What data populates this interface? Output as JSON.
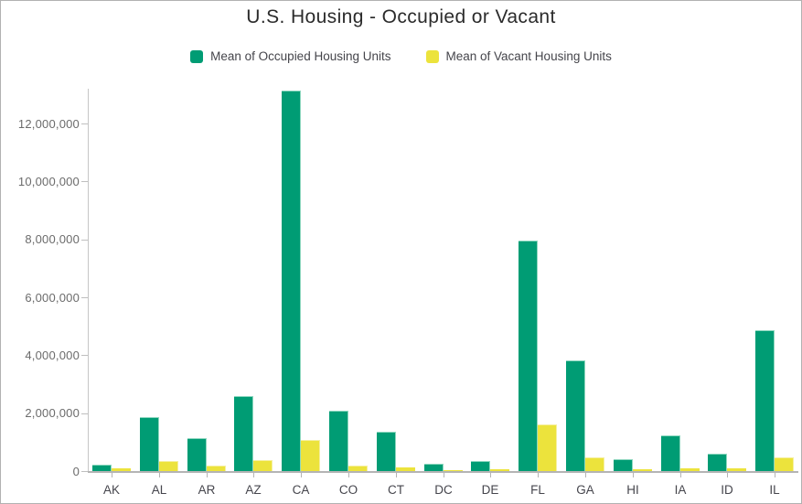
{
  "title": "U.S. Housing - Occupied or Vacant",
  "legend": {
    "items": [
      {
        "label": "Mean of Occupied Housing Units",
        "color": "#009c74"
      },
      {
        "label": "Mean of Vacant Housing Units",
        "color": "#ece33c"
      }
    ]
  },
  "chart_data": {
    "type": "bar",
    "title": "U.S. Housing - Occupied or Vacant",
    "xlabel": "",
    "ylabel": "",
    "categories": [
      "AK",
      "AL",
      "AR",
      "AZ",
      "CA",
      "CO",
      "CT",
      "DC",
      "DE",
      "FL",
      "GA",
      "HI",
      "IA",
      "ID",
      "IL"
    ],
    "series": [
      {
        "name": "Mean of Occupied Housing Units",
        "color": "#009c74",
        "edge_color": "#8ed7bf",
        "values": [
          220000,
          1850000,
          1130000,
          2600000,
          13150000,
          2090000,
          1360000,
          260000,
          340000,
          7950000,
          3820000,
          420000,
          1240000,
          600000,
          4870000
        ]
      },
      {
        "name": "Mean of Vacant Housing Units",
        "color": "#ece33c",
        "edge_color": "#f5efa0",
        "values": [
          90000,
          340000,
          180000,
          370000,
          1070000,
          200000,
          130000,
          30000,
          60000,
          1600000,
          470000,
          70000,
          100000,
          90000,
          470000
        ]
      }
    ],
    "ylim": [
      0,
      13200000
    ],
    "yticks": [
      0,
      2000000,
      4000000,
      6000000,
      8000000,
      10000000,
      12000000
    ],
    "ytick_labels": [
      "0",
      "2,000,000",
      "4,000,000",
      "6,000,000",
      "8,000,000",
      "10,000,000",
      "12,000,000"
    ],
    "grid": false,
    "legend_position": "top"
  }
}
